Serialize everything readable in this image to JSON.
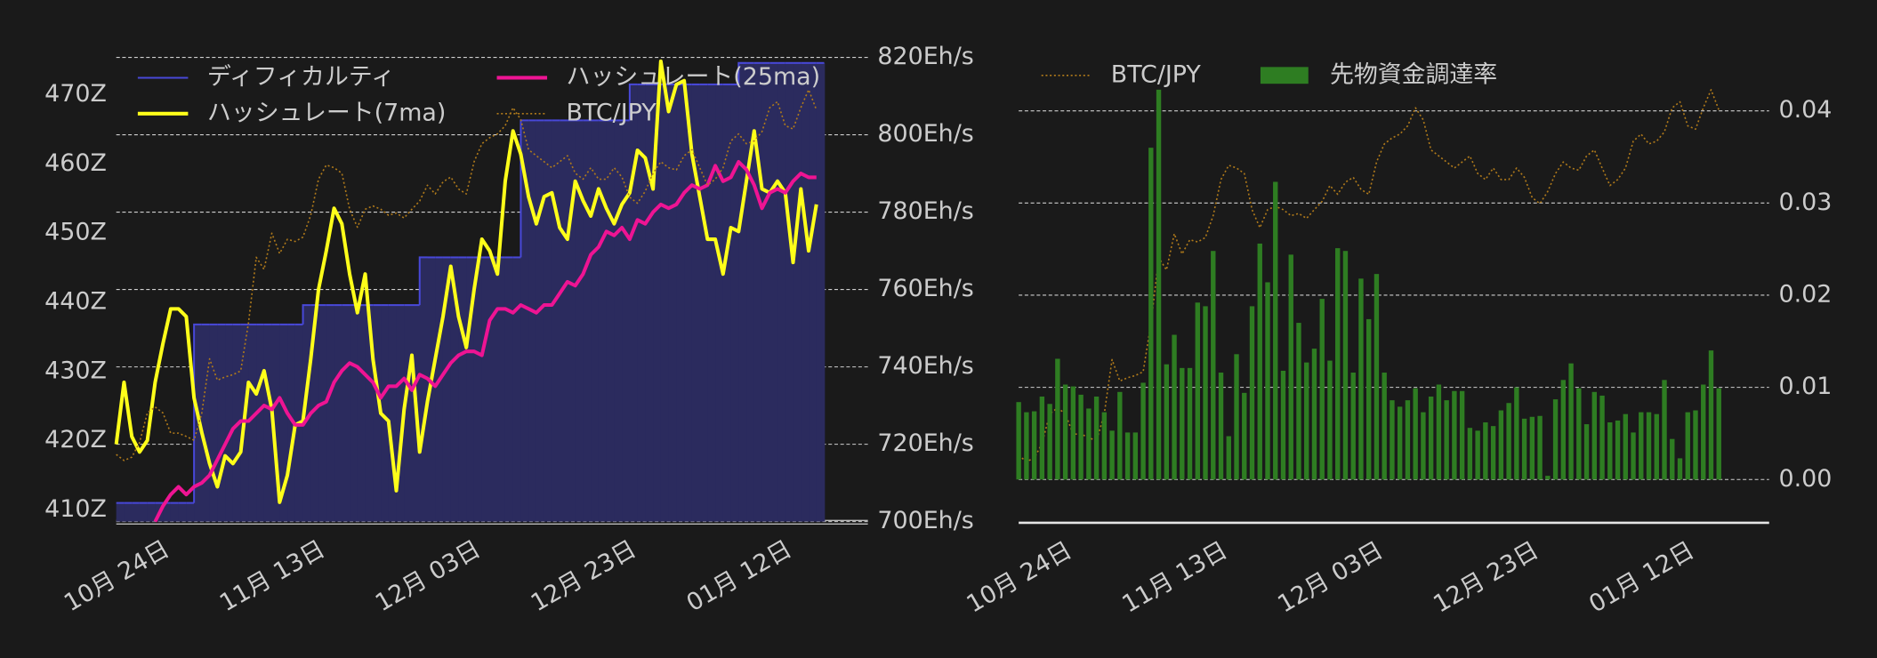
{
  "chart_data": [
    {
      "type": "line",
      "categories": [
        null,
        null,
        null,
        null,
        null,
        null,
        "10月 24日",
        null,
        null,
        null,
        null,
        null,
        null,
        null,
        null,
        null,
        null,
        null,
        null,
        null,
        null,
        null,
        null,
        null,
        null,
        null,
        "11月 13日",
        null,
        null,
        null,
        null,
        null,
        null,
        null,
        null,
        null,
        null,
        null,
        null,
        null,
        null,
        null,
        null,
        null,
        null,
        null,
        "12月 03日",
        null,
        null,
        null,
        null,
        null,
        null,
        null,
        null,
        null,
        null,
        null,
        null,
        null,
        null,
        null,
        null,
        null,
        null,
        null,
        "12月 23日",
        null,
        null,
        null,
        null,
        null,
        null,
        null,
        null,
        null,
        null,
        null,
        null,
        null,
        null,
        null,
        null,
        null,
        null,
        null,
        "01月 12日",
        null,
        null,
        null,
        null
      ],
      "ylim": [
        408.3,
        475.4
      ],
      "yticks": [
        {
          "value": 410,
          "label": "410Z"
        },
        {
          "value": 420,
          "label": "420Z"
        },
        {
          "value": 430,
          "label": "430Z"
        },
        {
          "value": 440,
          "label": "440Z"
        },
        {
          "value": 450,
          "label": "450Z"
        },
        {
          "value": 460,
          "label": "460Z"
        },
        {
          "value": 470,
          "label": "470Z"
        }
      ],
      "y2lim": [
        700,
        820
      ],
      "y2ticks": [
        {
          "value": 700,
          "label": "700Eh/s"
        },
        {
          "value": 720,
          "label": "720Eh/s"
        },
        {
          "value": 740,
          "label": "740Eh/s"
        },
        {
          "value": 760,
          "label": "760Eh/s"
        },
        {
          "value": 780,
          "label": "780Eh/s"
        },
        {
          "value": 800,
          "label": "800Eh/s"
        },
        {
          "value": 820,
          "label": "820Eh/s"
        }
      ],
      "y3lim": [
        8500000,
        17000000
      ],
      "y_axis_side": "left",
      "grid": "y2",
      "legend": "upper left",
      "series": [
        {
          "name": "ディフィカルティ",
          "type": "step",
          "axis": "y",
          "color": "#4848d8",
          "fill": "#2b2b5e",
          "values": [
            411.0,
            411.0,
            411.0,
            411.0,
            411.0,
            411.0,
            411.0,
            411.0,
            411.0,
            411.0,
            436.8,
            436.8,
            436.8,
            436.8,
            436.8,
            436.8,
            436.8,
            436.8,
            436.8,
            436.8,
            436.8,
            436.8,
            436.8,
            436.8,
            439.6,
            439.6,
            439.6,
            439.6,
            439.6,
            439.6,
            439.6,
            439.6,
            439.6,
            439.6,
            439.6,
            439.6,
            439.6,
            439.6,
            439.6,
            446.5,
            446.5,
            446.5,
            446.5,
            446.5,
            446.5,
            446.5,
            446.5,
            446.5,
            446.5,
            446.5,
            446.5,
            446.5,
            466.3,
            466.3,
            466.3,
            466.3,
            466.3,
            466.3,
            466.3,
            466.3,
            466.3,
            466.3,
            466.3,
            466.3,
            466.3,
            466.3,
            471.5,
            471.5,
            471.5,
            471.5,
            471.5,
            471.5,
            471.5,
            471.5,
            471.5,
            471.5,
            471.5,
            471.5,
            471.5,
            471.5,
            474.6,
            474.6,
            474.6,
            474.6,
            474.6,
            474.6,
            474.6,
            474.6,
            474.6,
            474.6,
            474.6
          ]
        },
        {
          "name": "ハッシュレート(7ma)",
          "type": "line",
          "axis": "y2",
          "color": "#ffff1a",
          "values": [
            720,
            736,
            722,
            718,
            721,
            736,
            746,
            755,
            755,
            753,
            732,
            723,
            715,
            709,
            717,
            715,
            718,
            736,
            733,
            739,
            729,
            705,
            712,
            725,
            726,
            742,
            760,
            770,
            781,
            777,
            764,
            754,
            764,
            742,
            728,
            726,
            708,
            729,
            743,
            718,
            731,
            742,
            753,
            766,
            753,
            745,
            760,
            773,
            770,
            764,
            788,
            801,
            795,
            784,
            777,
            784,
            785,
            776,
            773,
            788,
            783,
            779,
            786,
            781,
            777,
            782,
            785,
            796,
            794,
            786,
            819,
            806,
            813,
            814,
            795,
            784,
            773,
            773,
            764,
            776,
            775,
            788,
            801,
            786,
            785,
            788,
            785,
            767,
            786,
            770,
            782
          ]
        },
        {
          "name": "ハッシュレート(25ma)",
          "type": "line",
          "axis": "y2",
          "color": "#ee1493",
          "values": [
            null,
            null,
            null,
            null,
            null,
            700,
            704,
            707,
            709,
            707,
            709,
            710,
            712,
            716,
            720,
            724,
            726,
            726,
            728,
            730,
            729,
            732,
            728,
            725,
            725,
            728,
            730,
            731,
            736,
            739,
            741,
            740,
            738,
            736,
            732,
            735,
            735,
            737,
            734,
            738,
            737,
            735,
            738,
            741,
            743,
            744,
            744,
            743,
            752,
            755,
            755,
            754,
            756,
            755,
            754,
            756,
            756,
            759,
            762,
            761,
            764,
            769,
            771,
            775,
            774,
            776,
            773,
            778,
            777,
            780,
            782,
            781,
            782,
            785,
            787,
            786,
            787,
            792,
            788,
            789,
            793,
            791,
            787,
            781,
            785,
            786,
            785,
            788,
            790,
            789,
            789
          ]
        },
        {
          "name": "BTC/JPY",
          "type": "line",
          "style": "dotted",
          "axis": "y3",
          "color": "#b07a1a",
          "values": [
            9730000,
            9620000,
            9680000,
            9950000,
            10490000,
            10600000,
            10490000,
            10120000,
            10120000,
            10060000,
            9990000,
            10490000,
            11480000,
            11090000,
            11150000,
            11190000,
            11260000,
            12140000,
            13340000,
            13120000,
            13780000,
            13410000,
            13670000,
            13630000,
            13710000,
            14110000,
            14770000,
            15030000,
            14980000,
            14880000,
            14220000,
            13890000,
            14220000,
            14280000,
            14220000,
            14110000,
            14150000,
            14060000,
            14220000,
            14370000,
            14660000,
            14500000,
            14720000,
            14810000,
            14590000,
            14500000,
            15090000,
            15420000,
            15530000,
            15600000,
            15750000,
            16080000,
            15860000,
            15310000,
            15200000,
            15090000,
            14980000,
            15090000,
            15200000,
            14880000,
            14770000,
            14980000,
            14770000,
            14770000,
            14980000,
            14810000,
            14440000,
            14330000,
            14550000,
            14880000,
            15090000,
            14980000,
            14940000,
            15200000,
            15310000,
            14980000,
            14660000,
            14770000,
            14980000,
            15470000,
            15600000,
            15420000,
            15470000,
            15640000,
            16080000,
            16190000,
            15750000,
            15690000,
            16080000,
            16410000,
            16040000
          ]
        }
      ]
    },
    {
      "type": "bar",
      "categories": [
        null,
        null,
        null,
        null,
        null,
        null,
        "10月 24日",
        null,
        null,
        null,
        null,
        null,
        null,
        null,
        null,
        null,
        null,
        null,
        null,
        null,
        null,
        null,
        null,
        null,
        null,
        null,
        "11月 13日",
        null,
        null,
        null,
        null,
        null,
        null,
        null,
        null,
        null,
        null,
        null,
        null,
        null,
        null,
        null,
        null,
        null,
        null,
        null,
        "12月 03日",
        null,
        null,
        null,
        null,
        null,
        null,
        null,
        null,
        null,
        null,
        null,
        null,
        null,
        null,
        null,
        null,
        null,
        null,
        null,
        "12月 23日",
        null,
        null,
        null,
        null,
        null,
        null,
        null,
        null,
        null,
        null,
        null,
        null,
        null,
        null,
        null,
        null,
        null,
        null,
        null,
        "01月 12日",
        null,
        null,
        null,
        null
      ],
      "ylim": [
        -0.0047,
        0.0458
      ],
      "yticks": [
        {
          "value": 0,
          "label": "0.00"
        },
        {
          "value": 0.01,
          "label": "0.01"
        },
        {
          "value": 0.02,
          "label": "0.02"
        },
        {
          "value": 0.03,
          "label": "0.03"
        },
        {
          "value": 0.04,
          "label": "0.04"
        }
      ],
      "y3lim": [
        8500000,
        17000000
      ],
      "y_axis_side": "right",
      "grid": "y",
      "legend": "upper left",
      "series": [
        {
          "name": "BTC/JPY",
          "type": "line",
          "style": "dotted",
          "axis": "y3",
          "color": "#b07a1a",
          "values": [
            9730000,
            9620000,
            9680000,
            9950000,
            10490000,
            10600000,
            10490000,
            10120000,
            10120000,
            10060000,
            9990000,
            10490000,
            11480000,
            11090000,
            11150000,
            11190000,
            11260000,
            12140000,
            13340000,
            13120000,
            13780000,
            13410000,
            13670000,
            13630000,
            13710000,
            14110000,
            14770000,
            15030000,
            14980000,
            14880000,
            14220000,
            13890000,
            14220000,
            14280000,
            14220000,
            14110000,
            14150000,
            14060000,
            14220000,
            14370000,
            14660000,
            14500000,
            14720000,
            14810000,
            14590000,
            14500000,
            15090000,
            15420000,
            15530000,
            15600000,
            15750000,
            16080000,
            15860000,
            15310000,
            15200000,
            15090000,
            14980000,
            15090000,
            15200000,
            14880000,
            14770000,
            14980000,
            14770000,
            14770000,
            14980000,
            14810000,
            14440000,
            14330000,
            14550000,
            14880000,
            15090000,
            14980000,
            14940000,
            15200000,
            15310000,
            14980000,
            14660000,
            14770000,
            14980000,
            15470000,
            15600000,
            15420000,
            15470000,
            15640000,
            16080000,
            16190000,
            15750000,
            15690000,
            16080000,
            16410000,
            16040000
          ]
        },
        {
          "name": "先物資金調達率",
          "type": "bar",
          "axis": "y",
          "color": "#2e7d22",
          "values": [
            0.0084,
            0.0073,
            0.0074,
            0.009,
            0.0082,
            0.0131,
            0.0103,
            0.0101,
            0.0092,
            0.0077,
            0.009,
            0.0073,
            0.0053,
            0.0095,
            0.0051,
            0.0051,
            0.0105,
            0.036,
            0.0423,
            0.0125,
            0.0157,
            0.0121,
            0.0121,
            0.0192,
            0.0188,
            0.0248,
            0.0116,
            0.0047,
            0.0136,
            0.0094,
            0.0188,
            0.0256,
            0.0214,
            0.0323,
            0.0118,
            0.0244,
            0.017,
            0.0127,
            0.0142,
            0.0196,
            0.0129,
            0.0251,
            0.0248,
            0.0116,
            0.0218,
            0.0174,
            0.0223,
            0.0116,
            0.0086,
            0.0079,
            0.0086,
            0.0099,
            0.0073,
            0.009,
            0.0103,
            0.0086,
            0.0096,
            0.0096,
            0.0056,
            0.0053,
            0.0062,
            0.0058,
            0.0075,
            0.0083,
            0.01,
            0.0066,
            0.0068,
            0.0069,
            0.0004,
            0.0087,
            0.0108,
            0.0126,
            0.0099,
            0.006,
            0.0095,
            0.0091,
            0.0062,
            0.0064,
            0.0071,
            0.0051,
            0.0073,
            0.0073,
            0.0071,
            0.0108,
            0.0044,
            0.0023,
            0.0073,
            0.0075,
            0.0103,
            0.014,
            0.0099
          ]
        }
      ]
    }
  ]
}
